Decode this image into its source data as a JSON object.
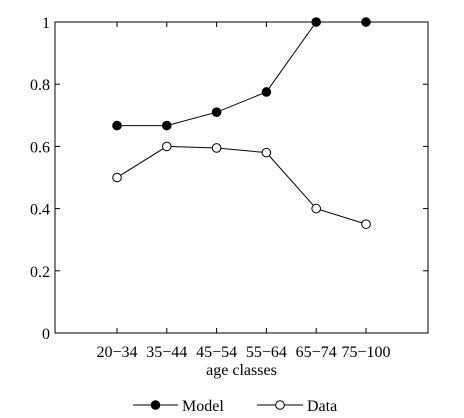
{
  "chart_data": {
    "type": "line",
    "title": "",
    "xlabel": "age classes",
    "ylabel": "",
    "categories": [
      "20−34",
      "35−44",
      "45−54",
      "55−64",
      "65−74",
      "75−100"
    ],
    "ylim": [
      0,
      1
    ],
    "yticks": [
      0,
      0.2,
      0.4,
      0.6,
      0.8,
      1
    ],
    "ytick_labels": [
      "0",
      "0.2",
      "0.4",
      "0.6",
      "0.8",
      "1"
    ],
    "grid": false,
    "legend_position": "bottom",
    "series": [
      {
        "name": "Model",
        "values": [
          0.667,
          0.667,
          0.71,
          0.775,
          1.0,
          1.0
        ],
        "marker": "filled-circle",
        "color": "#000000"
      },
      {
        "name": "Data",
        "values": [
          0.5,
          0.6,
          0.595,
          0.58,
          0.4,
          0.35
        ],
        "marker": "open-circle",
        "color": "#000000"
      }
    ]
  }
}
